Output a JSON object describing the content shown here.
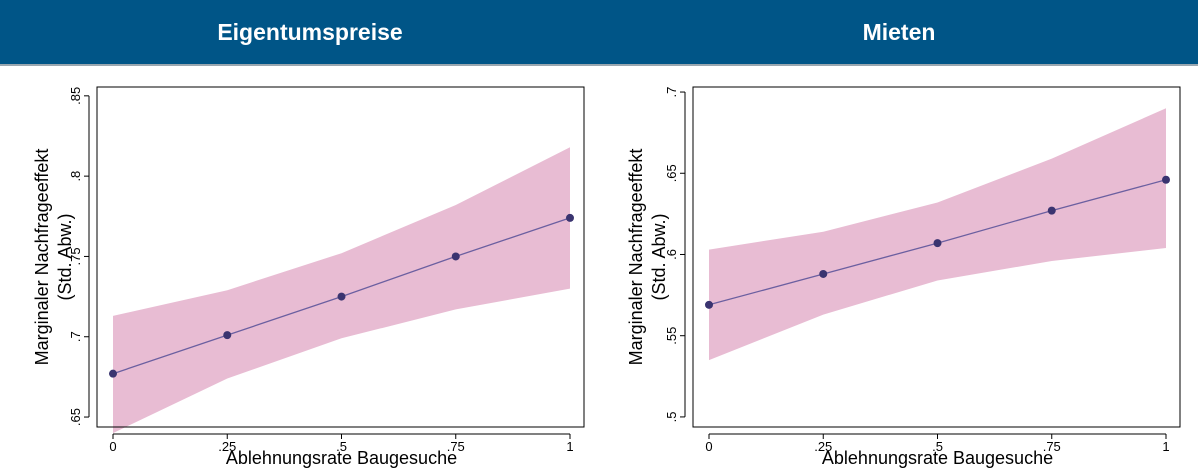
{
  "colors": {
    "header_bg": "#005587",
    "header_text": "#ffffff",
    "band_fill": "#e8bcd3",
    "line_color": "#6b5fa0",
    "marker_color": "#3a3470"
  },
  "panels": [
    {
      "title": "Eigentumspreise",
      "chart_data": {
        "type": "line",
        "x": [
          0,
          0.25,
          0.5,
          0.75,
          1
        ],
        "y": [
          0.677,
          0.701,
          0.725,
          0.75,
          0.774
        ],
        "ci_lower": [
          0.64,
          0.674,
          0.699,
          0.717,
          0.73
        ],
        "ci_upper": [
          0.713,
          0.729,
          0.752,
          0.782,
          0.818
        ],
        "xlabel": "Ablehnungsrate Baugesuche",
        "ylabel_line1": "Marginaler Nachfrageeffekt",
        "ylabel_line2": "(Std. Abw.)",
        "xlim": [
          0,
          1
        ],
        "ylim": [
          0.6438,
          0.8555
        ],
        "xticks": [
          0,
          0.25,
          0.5,
          0.75,
          1
        ],
        "xtick_labels": [
          "0",
          ".25",
          ".5",
          ".75",
          "1"
        ],
        "yticks": [
          0.65,
          0.7,
          0.75,
          0.8,
          0.85
        ],
        "ytick_labels": [
          ".65",
          ".7",
          ".75",
          ".8",
          ".85"
        ],
        "grid": false,
        "legend": "none"
      }
    },
    {
      "title": "Mieten",
      "chart_data": {
        "type": "line",
        "x": [
          0,
          0.25,
          0.5,
          0.75,
          1
        ],
        "y": [
          0.569,
          0.588,
          0.607,
          0.627,
          0.646
        ],
        "ci_lower": [
          0.535,
          0.563,
          0.584,
          0.596,
          0.604
        ],
        "ci_upper": [
          0.603,
          0.614,
          0.632,
          0.659,
          0.69
        ],
        "xlabel": "Ablehnungsrate Baugesuche",
        "ylabel_line1": "Marginaler Nachfrageeffekt",
        "ylabel_line2": "(Std. Abw.)",
        "xlim": [
          0,
          1
        ],
        "ylim": [
          0.4938,
          0.7031
        ],
        "xticks": [
          0,
          0.25,
          0.5,
          0.75,
          1
        ],
        "xtick_labels": [
          "0",
          ".25",
          ".5",
          ".75",
          "1"
        ],
        "yticks": [
          0.5,
          0.55,
          0.6,
          0.65,
          0.7
        ],
        "ytick_labels": [
          ".5",
          ".55",
          ".6",
          ".65",
          ".7"
        ],
        "grid": false,
        "legend": "none"
      }
    }
  ]
}
